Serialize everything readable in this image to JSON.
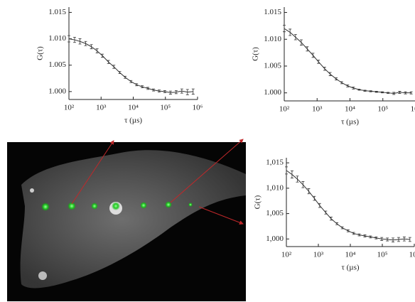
{
  "chart_data": [
    {
      "type": "line",
      "xlabel": "τ (µs)",
      "ylabel": "G(τ)",
      "xscale": "log",
      "color": "#333333",
      "x": [
        100,
        150,
        220,
        330,
        500,
        750,
        1100,
        1700,
        2500,
        3800,
        5600,
        8500,
        12700,
        19000,
        28500,
        42700,
        64000,
        96000,
        144000,
        216000,
        324000,
        486000,
        729000
      ],
      "values": [
        1.01,
        1.0098,
        1.0095,
        1.0091,
        1.0085,
        1.0077,
        1.0068,
        1.0056,
        1.0047,
        1.0036,
        1.0027,
        1.0019,
        1.0013,
        1.0009,
        1.0006,
        1.0003,
        1.0001,
        1.0,
        0.9998,
        0.9999,
        1.0001,
        0.9999,
        1.0
      ],
      "errors": [
        0.0006,
        0.0005,
        0.0005,
        0.0004,
        0.0004,
        0.0004,
        0.0003,
        0.0003,
        0.0003,
        0.0002,
        0.0002,
        0.0002,
        0.0002,
        0.0002,
        0.0002,
        0.0002,
        0.0002,
        0.0002,
        0.0003,
        0.0003,
        0.0004,
        0.0005,
        0.0005
      ],
      "xlim": [
        100,
        1000000
      ],
      "ylim": [
        0.9985,
        1.016
      ],
      "xticks": [
        {
          "value": 100,
          "label": "10²"
        },
        {
          "value": 1000,
          "label": "10³"
        },
        {
          "value": 10000,
          "label": "10⁴"
        },
        {
          "value": 100000,
          "label": "10⁵"
        },
        {
          "value": 1000000,
          "label": "10⁶"
        }
      ],
      "yticks": [
        {
          "value": 1,
          "label": "1.000"
        },
        1.005,
        {
          "value": 1.01,
          "label": "1.010"
        },
        1.015
      ]
    },
    {
      "type": "line",
      "xlabel": "τ (µs)",
      "ylabel": "G(τ)",
      "xscale": "log",
      "color": "#333333",
      "x": [
        100,
        150,
        220,
        330,
        500,
        750,
        1100,
        1700,
        2500,
        3800,
        5600,
        8500,
        12700,
        19000,
        28500,
        42700,
        64000,
        96000,
        144000,
        216000,
        324000,
        486000,
        729000
      ],
      "values": [
        1.012,
        1.0113,
        1.0104,
        1.0094,
        1.0082,
        1.007,
        1.0058,
        1.0045,
        1.0035,
        1.0026,
        1.0019,
        1.0013,
        1.0009,
        1.0006,
        1.0004,
        1.0003,
        1.0002,
        1.0001,
        1.0,
        0.9999,
        1.0001,
        1.0,
        1.0
      ],
      "errors": [
        0.0006,
        0.0006,
        0.0005,
        0.0005,
        0.0004,
        0.0004,
        0.0003,
        0.0003,
        0.0003,
        0.0002,
        0.0002,
        0.0002,
        0.0002,
        0.0001,
        0.0001,
        0.0001,
        0.0001,
        0.0001,
        0.0001,
        0.0002,
        0.0002,
        0.0002,
        0.0002
      ],
      "xlim": [
        100,
        1000000
      ],
      "ylim": [
        0.9985,
        1.016
      ],
      "xticks": [
        {
          "value": 100,
          "label": "10²"
        },
        {
          "value": 1000,
          "label": "10³"
        },
        {
          "value": 10000,
          "label": "10⁴"
        },
        {
          "value": 100000,
          "label": "10⁵"
        },
        {
          "value": 1000000,
          "label": "10⁶"
        }
      ],
      "yticks": [
        {
          "value": 1,
          "label": "1.000"
        },
        1.005,
        {
          "value": 1.01,
          "label": "1.010"
        },
        1.015
      ]
    },
    {
      "type": "line",
      "xlabel": "τ (µs)",
      "ylabel": "G(τ)",
      "xscale": "log",
      "color": "#333333",
      "x": [
        100,
        150,
        220,
        330,
        500,
        750,
        1100,
        1700,
        2500,
        3800,
        5600,
        8500,
        12700,
        19000,
        28500,
        42700,
        64000,
        96000,
        144000,
        216000,
        324000,
        486000,
        729000
      ],
      "values": [
        1.0135,
        1.0127,
        1.0118,
        1.0107,
        1.0094,
        1.008,
        1.0066,
        1.0052,
        1.004,
        1.003,
        1.0022,
        1.0016,
        1.0011,
        1.0008,
        1.0006,
        1.0004,
        1.0002,
        1.0,
        0.9999,
        0.9998,
        0.9999,
        1.0,
        0.9999
      ],
      "errors": [
        0.0007,
        0.0007,
        0.0006,
        0.0006,
        0.0005,
        0.0004,
        0.0004,
        0.0003,
        0.0003,
        0.0002,
        0.0002,
        0.0002,
        0.0002,
        0.0002,
        0.0002,
        0.0002,
        0.0002,
        0.0003,
        0.0003,
        0.0004,
        0.0004,
        0.0004,
        0.0004
      ],
      "xlim": [
        100,
        1000000
      ],
      "ylim": [
        0.9985,
        1.016
      ],
      "xticks": [
        {
          "value": 100,
          "label": "10²"
        },
        {
          "value": 1000,
          "label": "10³"
        },
        {
          "value": 10000,
          "label": "10⁴"
        },
        {
          "value": 100000,
          "label": "10⁵"
        },
        {
          "value": 1000000,
          "label": "10⁶"
        }
      ],
      "yticks": [
        {
          "value": 1,
          "label": "1,000"
        },
        {
          "value": 1.005,
          "label": "1,005"
        },
        {
          "value": 1.01,
          "label": "1,010"
        },
        {
          "value": 1.015,
          "label": "1,015"
        }
      ]
    }
  ]
}
